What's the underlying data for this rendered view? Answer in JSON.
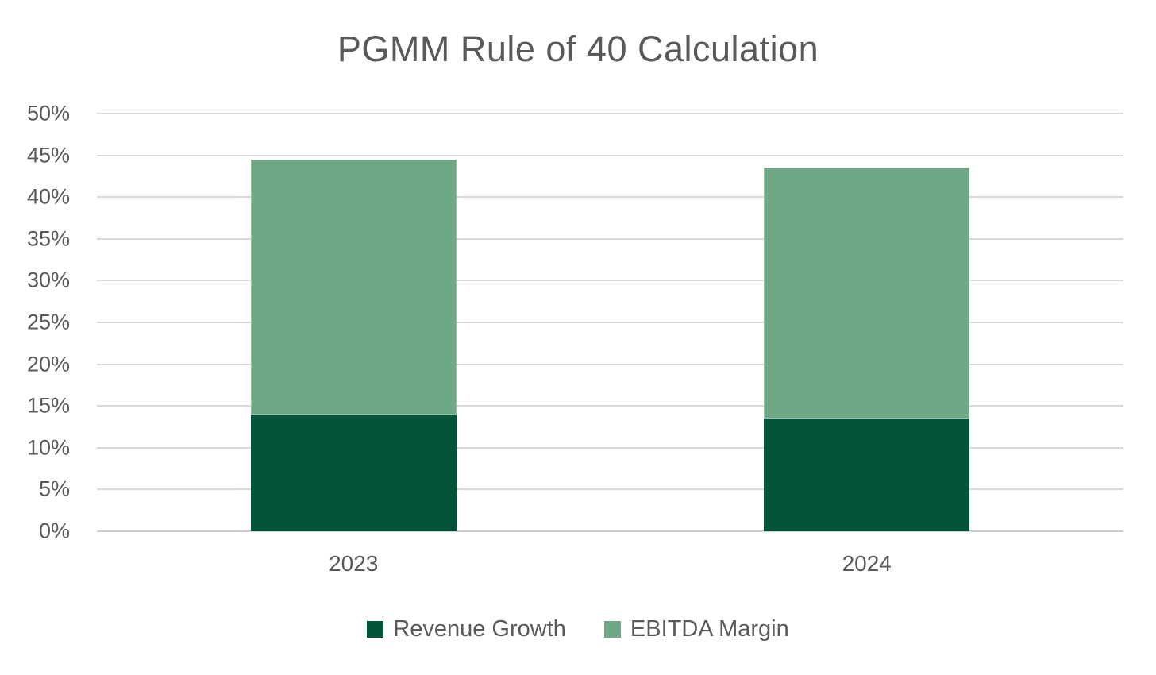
{
  "colors": {
    "grid": "#D9D9D9",
    "axis_line": "#CFCFCF",
    "text": "#595959",
    "background": "#FFFFFF",
    "revenue_growth": "#05543A",
    "ebitda_margin": "#6FA884"
  },
  "chart_data": {
    "type": "bar",
    "stacked": true,
    "title": "PGMM Rule of 40 Calculation",
    "categories": [
      "2023",
      "2024"
    ],
    "series": [
      {
        "name": "Revenue Growth",
        "color": "#05543A",
        "values": [
          14,
          13.5
        ]
      },
      {
        "name": "EBITDA Margin",
        "color": "#6FA884",
        "values": [
          30.5,
          30
        ]
      }
    ],
    "stack_totals": [
      44.5,
      43.5
    ],
    "xlabel": "",
    "ylabel": "",
    "ylim": [
      0,
      50
    ],
    "grid": true,
    "legend_position": "bottom",
    "y_ticks": [
      {
        "value": 0,
        "label": "0%"
      },
      {
        "value": 5,
        "label": "5%"
      },
      {
        "value": 10,
        "label": "10%"
      },
      {
        "value": 15,
        "label": "15%"
      },
      {
        "value": 20,
        "label": "20%"
      },
      {
        "value": 25,
        "label": "25%"
      },
      {
        "value": 30,
        "label": "30%"
      },
      {
        "value": 35,
        "label": "35%"
      },
      {
        "value": 40,
        "label": "40%"
      },
      {
        "value": 45,
        "label": "45%"
      },
      {
        "value": 50,
        "label": "50%"
      }
    ]
  }
}
